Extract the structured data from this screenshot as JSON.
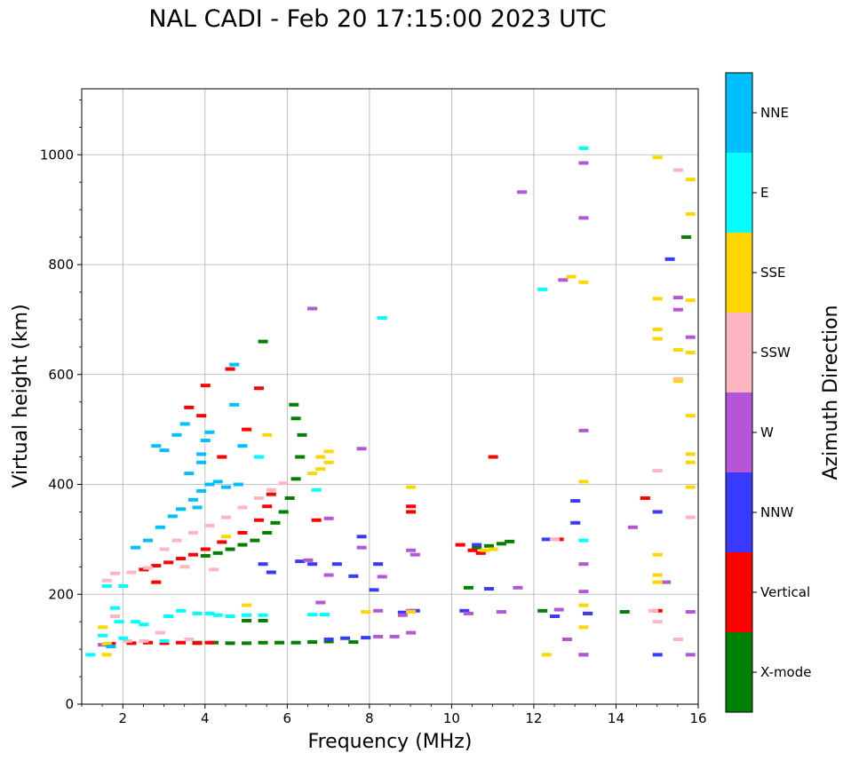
{
  "chart_data": {
    "type": "scatter",
    "title": "NAL CADI - Feb 20 17:15:00 2023 UTC",
    "xlabel": "Frequency (MHz)",
    "ylabel": "Virtual height (km)",
    "xlim": [
      1,
      16
    ],
    "ylim": [
      0,
      1120
    ],
    "xticks": [
      2,
      4,
      6,
      8,
      10,
      12,
      14,
      16
    ],
    "yticks": [
      0,
      200,
      400,
      600,
      800,
      1000
    ],
    "grid": true,
    "colorbar": {
      "label": "Azimuth Direction",
      "categories": [
        {
          "name": "X-mode",
          "color": "#008000"
        },
        {
          "name": "Vertical",
          "color": "#ff0000"
        },
        {
          "name": "NNW",
          "color": "#3a3aff"
        },
        {
          "name": "W",
          "color": "#b556d6"
        },
        {
          "name": "SSW",
          "color": "#ffb6c1"
        },
        {
          "name": "SSE",
          "color": "#ffd700"
        },
        {
          "name": "E",
          "color": "#00ffff"
        },
        {
          "name": "NNE",
          "color": "#00bfff"
        }
      ]
    },
    "series": [
      {
        "name": "X-mode",
        "points": [
          [
            3.8,
            112
          ],
          [
            4.2,
            112
          ],
          [
            4.6,
            111
          ],
          [
            5.0,
            111
          ],
          [
            5.4,
            112
          ],
          [
            5.8,
            112
          ],
          [
            6.2,
            112
          ],
          [
            6.6,
            113
          ],
          [
            7.0,
            114
          ],
          [
            7.6,
            113
          ],
          [
            4.0,
            270
          ],
          [
            4.3,
            275
          ],
          [
            4.6,
            282
          ],
          [
            4.9,
            290
          ],
          [
            5.2,
            298
          ],
          [
            5.5,
            312
          ],
          [
            5.7,
            330
          ],
          [
            5.9,
            350
          ],
          [
            6.05,
            375
          ],
          [
            6.2,
            410
          ],
          [
            6.3,
            450
          ],
          [
            6.35,
            490
          ],
          [
            6.2,
            520
          ],
          [
            6.15,
            545
          ],
          [
            5.4,
            660
          ],
          [
            5.0,
            152
          ],
          [
            5.4,
            152
          ],
          [
            10.6,
            285
          ],
          [
            10.9,
            288
          ],
          [
            11.2,
            292
          ],
          [
            11.4,
            296
          ],
          [
            14.2,
            168
          ],
          [
            15.7,
            850
          ],
          [
            12.2,
            170
          ],
          [
            10.4,
            212
          ]
        ]
      },
      {
        "name": "Vertical",
        "points": [
          [
            1.7,
            110
          ],
          [
            2.2,
            111
          ],
          [
            2.6,
            112
          ],
          [
            3.0,
            111
          ],
          [
            3.4,
            112
          ],
          [
            3.8,
            111
          ],
          [
            4.1,
            112
          ],
          [
            2.5,
            245
          ],
          [
            2.8,
            252
          ],
          [
            3.1,
            258
          ],
          [
            3.4,
            265
          ],
          [
            3.7,
            272
          ],
          [
            4.0,
            282
          ],
          [
            4.4,
            295
          ],
          [
            4.9,
            312
          ],
          [
            5.3,
            335
          ],
          [
            5.5,
            360
          ],
          [
            5.6,
            382
          ],
          [
            4.0,
            580
          ],
          [
            5.3,
            575
          ],
          [
            4.6,
            610
          ],
          [
            3.6,
            540
          ],
          [
            3.9,
            525
          ],
          [
            10.2,
            290
          ],
          [
            10.5,
            280
          ],
          [
            10.7,
            275
          ],
          [
            11.0,
            450
          ],
          [
            9.0,
            360
          ],
          [
            9.0,
            350
          ],
          [
            13.3,
            165
          ],
          [
            15.0,
            170
          ],
          [
            14.7,
            375
          ],
          [
            12.6,
            300
          ],
          [
            6.7,
            335
          ],
          [
            5.0,
            500
          ],
          [
            4.4,
            450
          ],
          [
            2.8,
            222
          ]
        ]
      },
      {
        "name": "NNW",
        "points": [
          [
            7.0,
            118
          ],
          [
            7.4,
            120
          ],
          [
            7.9,
            121
          ],
          [
            6.6,
            255
          ],
          [
            7.2,
            255
          ],
          [
            7.6,
            233
          ],
          [
            8.1,
            208
          ],
          [
            8.2,
            255
          ],
          [
            8.8,
            167
          ],
          [
            9.1,
            170
          ],
          [
            10.3,
            170
          ],
          [
            10.9,
            210
          ],
          [
            10.6,
            290
          ],
          [
            12.3,
            300
          ],
          [
            13.0,
            370
          ],
          [
            13.0,
            330
          ],
          [
            13.2,
            90
          ],
          [
            13.3,
            165
          ],
          [
            15.0,
            90
          ],
          [
            15.3,
            810
          ],
          [
            15.0,
            350
          ],
          [
            12.5,
            160
          ],
          [
            7.8,
            305
          ],
          [
            5.4,
            255
          ],
          [
            5.6,
            240
          ],
          [
            6.3,
            260
          ]
        ]
      },
      {
        "name": "W",
        "points": [
          [
            1.5,
            108
          ],
          [
            8.2,
            123
          ],
          [
            8.6,
            123
          ],
          [
            9.0,
            130
          ],
          [
            8.2,
            170
          ],
          [
            9.0,
            170
          ],
          [
            8.8,
            162
          ],
          [
            9.0,
            280
          ],
          [
            8.3,
            232
          ],
          [
            6.5,
            262
          ],
          [
            7.0,
            235
          ],
          [
            7.8,
            285
          ],
          [
            6.6,
            720
          ],
          [
            7.0,
            338
          ],
          [
            7.8,
            465
          ],
          [
            9.1,
            272
          ],
          [
            10.4,
            165
          ],
          [
            11.2,
            168
          ],
          [
            12.6,
            172
          ],
          [
            13.2,
            205
          ],
          [
            13.2,
            255
          ],
          [
            13.2,
            498
          ],
          [
            13.2,
            885
          ],
          [
            13.2,
            985
          ],
          [
            12.7,
            772
          ],
          [
            11.7,
            932
          ],
          [
            11.6,
            212
          ],
          [
            12.8,
            118
          ],
          [
            14.4,
            322
          ],
          [
            15.5,
            740
          ],
          [
            15.5,
            718
          ],
          [
            15.8,
            668
          ],
          [
            15.8,
            168
          ],
          [
            15.8,
            90
          ],
          [
            15.2,
            222
          ],
          [
            13.2,
            90
          ],
          [
            6.8,
            185
          ]
        ]
      },
      {
        "name": "SSW",
        "points": [
          [
            1.8,
            238
          ],
          [
            2.2,
            240
          ],
          [
            2.6,
            248
          ],
          [
            3.0,
            282
          ],
          [
            3.3,
            298
          ],
          [
            3.7,
            312
          ],
          [
            4.1,
            325
          ],
          [
            4.5,
            340
          ],
          [
            4.9,
            358
          ],
          [
            5.3,
            375
          ],
          [
            5.6,
            390
          ],
          [
            5.9,
            402
          ],
          [
            1.6,
            225
          ],
          [
            1.8,
            160
          ],
          [
            2.1,
            115
          ],
          [
            2.5,
            115
          ],
          [
            3.6,
            118
          ],
          [
            15.0,
            425
          ],
          [
            15.0,
            150
          ],
          [
            15.5,
            118
          ],
          [
            15.5,
            972
          ],
          [
            15.5,
            592
          ],
          [
            15.8,
            340
          ],
          [
            12.5,
            300
          ],
          [
            14.9,
            170
          ],
          [
            4.2,
            245
          ],
          [
            3.5,
            250
          ],
          [
            2.9,
            130
          ]
        ]
      },
      {
        "name": "SSE",
        "points": [
          [
            1.6,
            90
          ],
          [
            1.5,
            140
          ],
          [
            1.6,
            110
          ],
          [
            6.8,
            450
          ],
          [
            6.8,
            428
          ],
          [
            6.6,
            420
          ],
          [
            7.0,
            460
          ],
          [
            7.0,
            440
          ],
          [
            9.0,
            395
          ],
          [
            9.0,
            168
          ],
          [
            7.9,
            168
          ],
          [
            10.8,
            280
          ],
          [
            11.0,
            282
          ],
          [
            12.3,
            90
          ],
          [
            12.9,
            778
          ],
          [
            13.2,
            768
          ],
          [
            13.2,
            405
          ],
          [
            13.2,
            180
          ],
          [
            13.2,
            140
          ],
          [
            15.0,
            995
          ],
          [
            15.0,
            738
          ],
          [
            15.0,
            682
          ],
          [
            15.0,
            665
          ],
          [
            15.0,
            272
          ],
          [
            15.0,
            235
          ],
          [
            15.0,
            222
          ],
          [
            15.5,
            645
          ],
          [
            15.8,
            955
          ],
          [
            15.8,
            892
          ],
          [
            15.8,
            735
          ],
          [
            15.8,
            640
          ],
          [
            15.8,
            525
          ],
          [
            15.8,
            455
          ],
          [
            15.8,
            440
          ],
          [
            15.8,
            395
          ],
          [
            15.5,
            588
          ],
          [
            4.5,
            305
          ],
          [
            5.5,
            490
          ],
          [
            5.0,
            180
          ]
        ]
      },
      {
        "name": "E",
        "points": [
          [
            1.2,
            90
          ],
          [
            1.5,
            125
          ],
          [
            1.6,
            215
          ],
          [
            1.8,
            175
          ],
          [
            2.0,
            215
          ],
          [
            2.3,
            150
          ],
          [
            2.5,
            145
          ],
          [
            3.1,
            160
          ],
          [
            3.4,
            170
          ],
          [
            3.8,
            165
          ],
          [
            4.1,
            165
          ],
          [
            4.3,
            162
          ],
          [
            4.6,
            160
          ],
          [
            5.0,
            162
          ],
          [
            5.4,
            162
          ],
          [
            6.6,
            163
          ],
          [
            6.9,
            163
          ],
          [
            8.3,
            703
          ],
          [
            12.2,
            755
          ],
          [
            13.2,
            1012
          ],
          [
            13.2,
            298
          ],
          [
            6.7,
            390
          ],
          [
            5.3,
            450
          ],
          [
            2.0,
            120
          ],
          [
            3.0,
            115
          ],
          [
            1.9,
            150
          ]
        ]
      },
      {
        "name": "NNE",
        "points": [
          [
            2.3,
            285
          ],
          [
            2.6,
            298
          ],
          [
            2.9,
            322
          ],
          [
            3.2,
            342
          ],
          [
            3.4,
            355
          ],
          [
            3.7,
            372
          ],
          [
            3.9,
            388
          ],
          [
            4.1,
            400
          ],
          [
            4.3,
            405
          ],
          [
            3.6,
            420
          ],
          [
            3.9,
            440
          ],
          [
            4.0,
            480
          ],
          [
            4.1,
            495
          ],
          [
            3.5,
            510
          ],
          [
            4.7,
            545
          ],
          [
            4.7,
            618
          ],
          [
            4.9,
            470
          ],
          [
            4.5,
            395
          ],
          [
            4.8,
            400
          ],
          [
            3.0,
            462
          ],
          [
            3.9,
            455
          ],
          [
            2.8,
            470
          ],
          [
            3.3,
            490
          ],
          [
            1.7,
            105
          ],
          [
            3.8,
            358
          ]
        ]
      }
    ]
  }
}
